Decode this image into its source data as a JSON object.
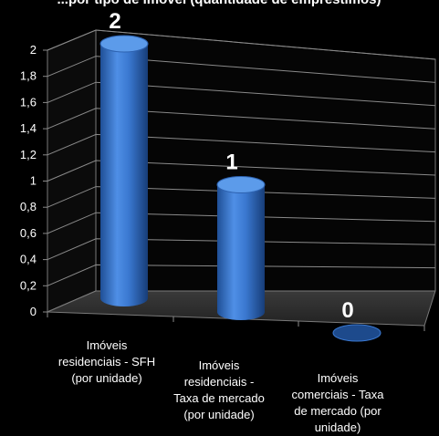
{
  "chart_data": {
    "type": "bar",
    "title": "...por tipo de imóvel (quantidade de empréstimos)",
    "categories": [
      [
        "Imóveis",
        "residenciais - SFH",
        "(por unidade)"
      ],
      [
        "Imóveis",
        "residenciais -",
        "Taxa de mercado",
        "(por unidade)"
      ],
      [
        "Imóveis",
        "comerciais - Taxa",
        "de mercado (por",
        "unidade)"
      ]
    ],
    "values": [
      2,
      1,
      0
    ],
    "data_labels": [
      "2",
      "1",
      "0"
    ],
    "ylim": [
      0,
      2
    ],
    "yticks": [
      "0",
      "0,2",
      "0,4",
      "0,6",
      "0,8",
      "1",
      "1,2",
      "1,4",
      "1,6",
      "1,8",
      "2"
    ],
    "grid": true,
    "bar_shape": "cylinder",
    "bar_color": "#3a78d0",
    "background": "#000000",
    "text_color": "#ffffff",
    "grid_color": "#8a8a8a"
  }
}
